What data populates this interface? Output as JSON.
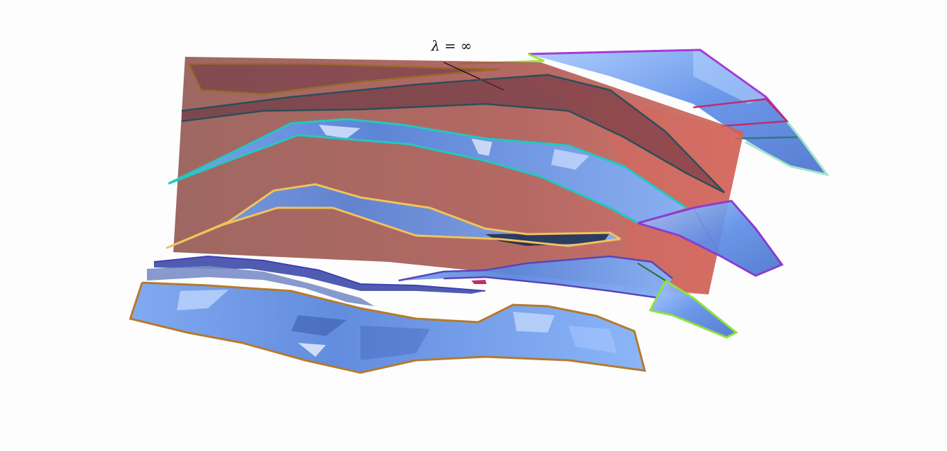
{
  "figure": {
    "annotation": "λ = ∞"
  },
  "colors": {
    "background": "#fdfdfd",
    "cut_plane": "#a8443a",
    "surface_fill": "#5b8ee8",
    "surface_light": "#9ec4ff",
    "outline_brown": "#b57a2a",
    "outline_cyan": "#22c8c2",
    "outline_yellow": "#f2c35a",
    "outline_purple": "#a23cd6",
    "outline_lime": "#9ee23c",
    "outline_magenta": "#c22a6a",
    "outline_dark_teal": "#2c5a66",
    "outline_indigo": "#3d3fb8"
  },
  "icons": {
    "annotation_leader": "leader-line"
  }
}
